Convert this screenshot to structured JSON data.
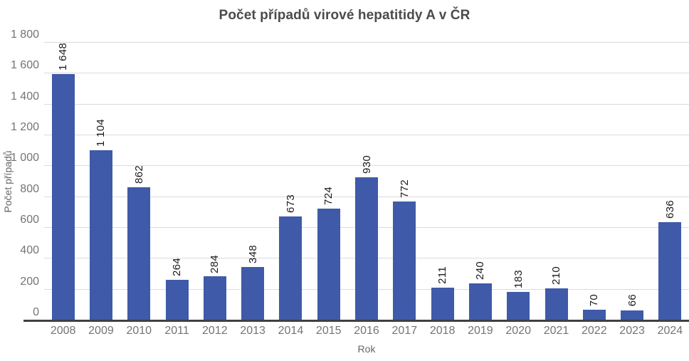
{
  "chart_data": {
    "type": "bar",
    "title": "Počet případů virové hepatitidy A v ČR",
    "xlabel": "Rok",
    "ylabel": "Počet případů",
    "categories": [
      "2008",
      "2009",
      "2010",
      "2011",
      "2012",
      "2013",
      "2014",
      "2015",
      "2016",
      "2017",
      "2018",
      "2019",
      "2020",
      "2021",
      "2022",
      "2023",
      "2024"
    ],
    "values": [
      1648,
      1104,
      862,
      264,
      284,
      348,
      673,
      724,
      930,
      772,
      211,
      240,
      183,
      210,
      70,
      66,
      636
    ],
    "value_labels": [
      "1 648",
      "1 104",
      "862",
      "264",
      "284",
      "348",
      "673",
      "724",
      "930",
      "772",
      "211",
      "240",
      "183",
      "210",
      "70",
      "66",
      "636"
    ],
    "ylim": [
      0,
      1800
    ],
    "ytick_step": 200,
    "yticks": [
      "0",
      "200",
      "400",
      "600",
      "800",
      "1 000",
      "1 200",
      "1 400",
      "1 600",
      "1 800"
    ],
    "grid": true,
    "legend_position": "none",
    "colors": {
      "bar": "#3E5AA8",
      "grid": "#DBDBDB",
      "axis_line": "#404040",
      "tick_label": "#747474",
      "value_label": "#1A1A1A",
      "title": "#4B4B4D",
      "axis_title": "#666666",
      "background": "#FFFFFF"
    }
  }
}
